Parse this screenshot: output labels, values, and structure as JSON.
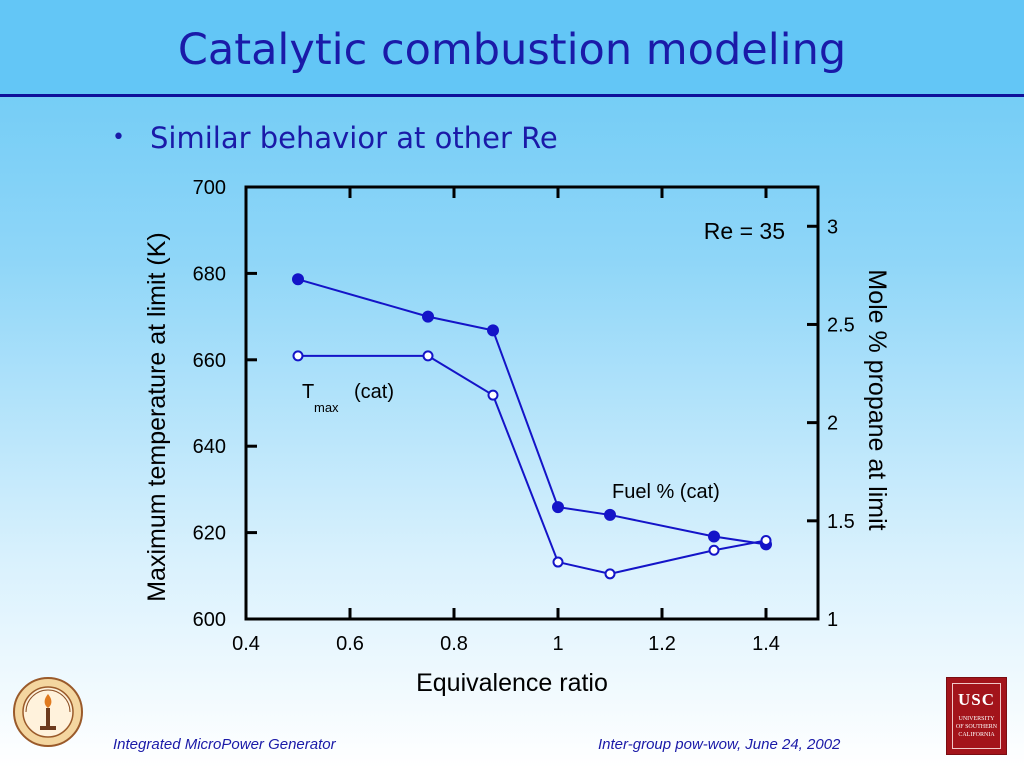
{
  "slide": {
    "title": "Catalytic combustion modeling",
    "bullet": "Similar behavior at other Re"
  },
  "footer": {
    "left": "Integrated MicroPower Generator",
    "right": "Inter-group pow-wow, June 24, 2002"
  },
  "logos": {
    "left_logo": "caltech-seal",
    "right_logo_text": "USC",
    "right_logo_subtext": [
      "UNIVERSITY",
      "OF SOUTHERN",
      "CALIFORNIA"
    ]
  },
  "colors": {
    "title_text": "#1a1aa8",
    "series": "#1414c8",
    "title_rule": "#10109a"
  },
  "chart_data": {
    "type": "line",
    "xlabel": "Equivalence ratio",
    "ylabel": "Maximum temperature at limit (K)",
    "y2label": "Mole % propane at limit",
    "xlim": [
      0.4,
      1.5
    ],
    "ylim": [
      600,
      700
    ],
    "y2lim": [
      1,
      3.2
    ],
    "xticks": [
      "0.4",
      "0.6",
      "0.8",
      "1",
      "1.2",
      "1.4"
    ],
    "yticks": [
      "600",
      "620",
      "640",
      "660",
      "680",
      "700"
    ],
    "y2ticks": [
      "1",
      "1.5",
      "2",
      "2.5",
      "3"
    ],
    "annotations": {
      "re": "Re = 35",
      "tmax_main": "T",
      "tmax_sub": "max",
      "tmax_suffix": "(cat)",
      "fuel": "Fuel % (cat)"
    },
    "series": [
      {
        "marker": "filled",
        "axis": "y2",
        "x": [
          0.5,
          0.75,
          0.875,
          1.0,
          1.1,
          1.3,
          1.4
        ],
        "values": [
          2.73,
          2.54,
          2.47,
          1.57,
          1.53,
          1.42,
          1.38
        ]
      },
      {
        "marker": "open",
        "axis": "y2",
        "x": [
          0.5,
          0.75,
          0.875,
          1.0,
          1.1,
          1.3,
          1.4
        ],
        "values": [
          2.34,
          2.34,
          2.14,
          1.29,
          1.23,
          1.35,
          1.4
        ]
      }
    ]
  }
}
